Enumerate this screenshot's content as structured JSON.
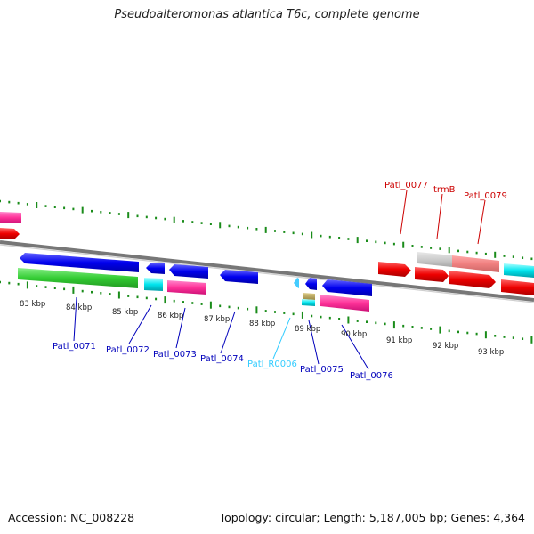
{
  "title": "Pseudoalteromonas atlantica T6c, complete genome",
  "footer": {
    "accession": "Accession: NC_008228",
    "summary": "Topology: circular; Length: 5,187,005 bp; Genes: 4,364"
  },
  "axis": {
    "ticks": [
      "83 kbp",
      "84 kbp",
      "85 kbp",
      "86 kbp",
      "87 kbp",
      "88 kbp",
      "89 kbp",
      "90 kbp",
      "91 kbp",
      "92 kbp",
      "93 kbp"
    ]
  },
  "genes": {
    "top": [
      "Patl_0077",
      "trmB",
      "Patl_0079"
    ],
    "bottom": [
      "Patl_0071",
      "Patl_0072",
      "Patl_0073",
      "Patl_0074",
      "Patl_R0006",
      "Patl_0075",
      "Patl_0076"
    ]
  },
  "colors": {
    "cds": "#ff0000",
    "cds_rev": "#0000ff",
    "trna": "#00e5ee",
    "rna_label": "#33ccff",
    "label_top": "#cc0000",
    "label_bottom": "#0000bb",
    "tick": "#1a8c1a",
    "gc": "#33cc33",
    "pink": "#ff3399"
  }
}
